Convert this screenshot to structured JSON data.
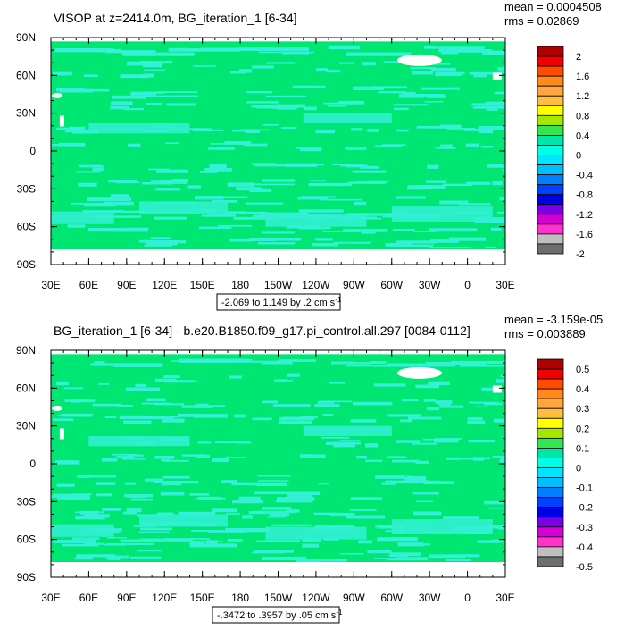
{
  "chart_data": [
    {
      "type": "heatmap",
      "title": "VISOP at z=2414.0m, BG_iteration_1 [6-34]",
      "stats": {
        "mean": "mean = 0.0004508",
        "rms": "rms = 0.02869"
      },
      "x_ticks": [
        "30E",
        "60E",
        "90E",
        "120E",
        "150E",
        "180",
        "150W",
        "120W",
        "90W",
        "60W",
        "30W",
        "0",
        "30E"
      ],
      "y_ticks": [
        "90N",
        "60N",
        "30N",
        "0",
        "30S",
        "60S",
        "90S"
      ],
      "xlim_deg_east": [
        30,
        390
      ],
      "ylim_deg_north": [
        -90,
        90
      ],
      "contour_info": "-2.069 to 1.149 by .2 cm s",
      "contour_info_sup": "-1",
      "colorbar_labels": [
        "2",
        "1.6",
        "1.2",
        "0.8",
        "0.4",
        "0",
        "-0.4",
        "-0.8",
        "-1.2",
        "-1.6",
        "-2"
      ],
      "colorbar_colors": [
        "#ae0000",
        "#f00000",
        "#ff4c00",
        "#ff8a1a",
        "#ffa640",
        "#ffbe40",
        "#ffff00",
        "#a6e600",
        "#33e64d",
        "#00e6a6",
        "#00ffe6",
        "#00e6ff",
        "#00bfff",
        "#0080ff",
        "#0040ff",
        "#0000e6",
        "#7a00e6",
        "#d600d6",
        "#ff33cc",
        "#bfbfbf",
        "#6e6e6e"
      ],
      "dominant_value": "0",
      "dominant_color": "#00e673",
      "secondary_color": "#33f0d6"
    },
    {
      "type": "heatmap",
      "title": "BG_iteration_1 [6-34] - b.e20.B1850.f09_g17.pi_control.all.297 [0084-0112]",
      "stats": {
        "mean": "mean = -3.159e-05",
        "rms": "rms = 0.003889"
      },
      "x_ticks": [
        "30E",
        "60E",
        "90E",
        "120E",
        "150E",
        "180",
        "150W",
        "120W",
        "90W",
        "60W",
        "30W",
        "0",
        "30E"
      ],
      "y_ticks": [
        "90N",
        "60N",
        "30N",
        "0",
        "30S",
        "60S",
        "90S"
      ],
      "xlim_deg_east": [
        30,
        390
      ],
      "ylim_deg_north": [
        -90,
        90
      ],
      "contour_info": "-.3472 to .3957 by .05 cm s",
      "contour_info_sup": "-1",
      "colorbar_labels": [
        "0.5",
        "0.4",
        "0.3",
        "0.2",
        "0.1",
        "0",
        "-0.1",
        "-0.2",
        "-0.3",
        "-0.4",
        "-0.5"
      ],
      "colorbar_colors": [
        "#ae0000",
        "#f00000",
        "#ff4c00",
        "#ff8a1a",
        "#ffa640",
        "#ffbe40",
        "#ffff00",
        "#a6e600",
        "#33e64d",
        "#00e6a6",
        "#00ffe6",
        "#00e6ff",
        "#00bfff",
        "#0080ff",
        "#0040ff",
        "#0000e6",
        "#7a00e6",
        "#d600d6",
        "#ff33cc",
        "#bfbfbf",
        "#6e6e6e"
      ],
      "dominant_value": "0",
      "dominant_color": "#00e673",
      "secondary_color": "#33f0d6"
    }
  ]
}
